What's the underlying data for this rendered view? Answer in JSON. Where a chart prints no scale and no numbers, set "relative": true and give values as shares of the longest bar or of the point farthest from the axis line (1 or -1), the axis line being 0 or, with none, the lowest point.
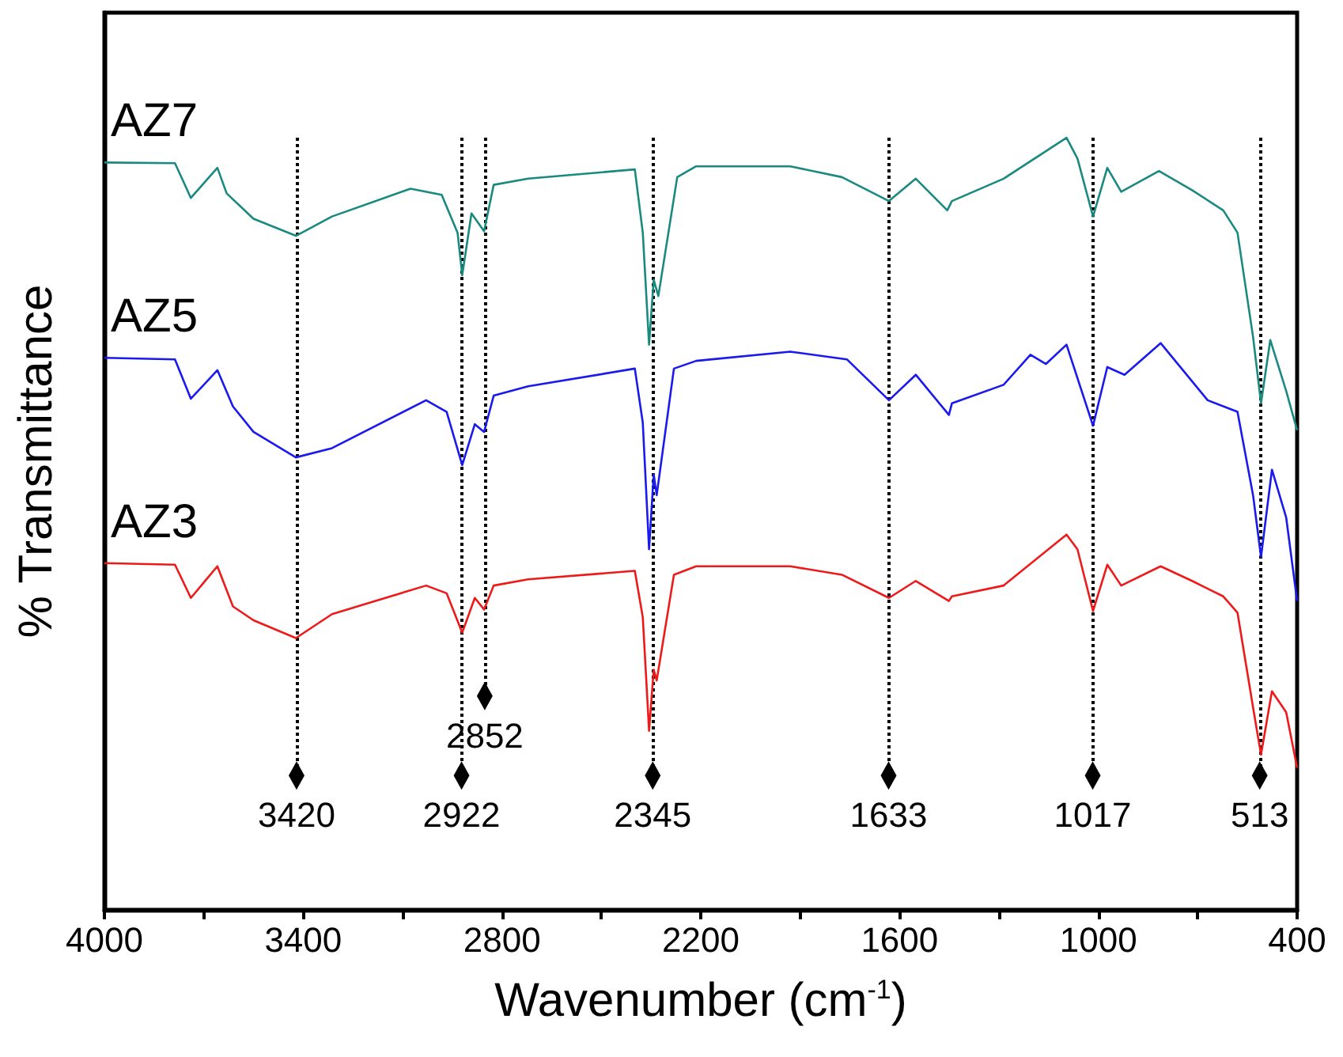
{
  "chart_data": {
    "type": "line",
    "relative": true,
    "xlabel": "Wavenumber (cm$^{-1}$)",
    "ylabel": "% Transmittance",
    "xlim": [
      4000,
      400
    ],
    "xticks": [
      4000,
      {
        "value": 3700,
        "label": null
      },
      3400,
      {
        "value": 3100,
        "label": null
      },
      2800,
      {
        "value": 2500,
        "label": null
      },
      2200,
      {
        "value": 1900,
        "label": null
      },
      1600,
      {
        "value": 1300,
        "label": null
      },
      1000,
      {
        "value": 700,
        "label": null
      },
      400
    ],
    "marker": "none",
    "grid": false,
    "series": [
      {
        "name": "AZ7",
        "color": "#1a8a80",
        "x": [
          4000,
          3787,
          3739,
          3659,
          3631,
          3550,
          3422,
          3313,
          3076,
          2982,
          2934,
          2920,
          2892,
          2854,
          2825,
          2721,
          2399,
          2375,
          2356,
          2342,
          2328,
          2271,
          2214,
          1930,
          1774,
          1632,
          1551,
          1456,
          1442,
          1286,
          1096,
          1063,
          1016,
          973,
          931,
          817,
          717,
          623,
          580,
          533,
          509,
          481,
          433,
          400
        ],
        "values": [
          0.968,
          0.967,
          0.922,
          0.961,
          0.928,
          0.895,
          0.873,
          0.898,
          0.934,
          0.926,
          0.877,
          0.822,
          0.902,
          0.879,
          0.939,
          0.947,
          0.959,
          0.877,
          0.732,
          0.816,
          0.795,
          0.949,
          0.963,
          0.963,
          0.949,
          0.918,
          0.947,
          0.906,
          0.918,
          0.947,
          1.0,
          0.973,
          0.898,
          0.961,
          0.93,
          0.957,
          0.932,
          0.906,
          0.877,
          0.742,
          0.656,
          0.738,
          0.672,
          0.621
        ]
      },
      {
        "name": "AZ5",
        "color": "#1a1aee",
        "x": [
          4000,
          3787,
          3739,
          3659,
          3612,
          3550,
          3422,
          3313,
          3029,
          2967,
          2920,
          2882,
          2854,
          2825,
          2721,
          2399,
          2375,
          2356,
          2342,
          2333,
          2281,
          2214,
          1930,
          1759,
          1632,
          1551,
          1451,
          1442,
          1286,
          1205,
          1158,
          1096,
          1016,
          973,
          921,
          812,
          670,
          580,
          533,
          509,
          476,
          433,
          400
        ],
        "values": [
          0.715,
          0.713,
          0.662,
          0.699,
          0.652,
          0.619,
          0.586,
          0.598,
          0.66,
          0.645,
          0.576,
          0.629,
          0.619,
          0.666,
          0.678,
          0.701,
          0.631,
          0.467,
          0.564,
          0.537,
          0.701,
          0.711,
          0.723,
          0.713,
          0.66,
          0.693,
          0.641,
          0.656,
          0.68,
          0.719,
          0.707,
          0.732,
          0.627,
          0.703,
          0.693,
          0.734,
          0.66,
          0.645,
          0.537,
          0.457,
          0.57,
          0.508,
          0.4
        ]
      },
      {
        "name": "AZ3",
        "color": "#ee1a1a",
        "x": [
          4000,
          3787,
          3739,
          3659,
          3612,
          3550,
          3422,
          3313,
          3029,
          2967,
          2920,
          2882,
          2854,
          2825,
          2721,
          2399,
          2375,
          2356,
          2342,
          2333,
          2281,
          2214,
          1930,
          1774,
          1632,
          1551,
          1451,
          1442,
          1286,
          1096,
          1063,
          1016,
          973,
          931,
          812,
          717,
          623,
          580,
          533,
          509,
          476,
          433,
          400
        ],
        "values": [
          0.449,
          0.447,
          0.404,
          0.445,
          0.393,
          0.375,
          0.352,
          0.383,
          0.42,
          0.41,
          0.359,
          0.404,
          0.389,
          0.42,
          0.428,
          0.439,
          0.379,
          0.232,
          0.311,
          0.297,
          0.434,
          0.445,
          0.445,
          0.434,
          0.404,
          0.426,
          0.4,
          0.406,
          0.42,
          0.486,
          0.467,
          0.387,
          0.447,
          0.42,
          0.445,
          0.426,
          0.406,
          0.385,
          0.262,
          0.201,
          0.283,
          0.256,
          0.184
        ]
      }
    ],
    "ref_lines": [
      {
        "axis": "x",
        "value": 3420,
        "label": "3420",
        "line_style": "dotted",
        "color": "#000000"
      },
      {
        "axis": "x",
        "value": 2922,
        "label": "2922",
        "line_style": "dotted",
        "color": "#000000"
      },
      {
        "axis": "x",
        "value": 2852,
        "label": "2852",
        "line_style": "dotted",
        "color": "#000000"
      },
      {
        "axis": "x",
        "value": 2345,
        "label": "2345",
        "line_style": "dotted",
        "color": "#000000"
      },
      {
        "axis": "x",
        "value": 1633,
        "label": "1633",
        "line_style": "dotted",
        "color": "#000000"
      },
      {
        "axis": "x",
        "value": 1017,
        "label": "1017",
        "line_style": "dotted",
        "color": "#000000"
      },
      {
        "axis": "x",
        "value": 513,
        "label": "513",
        "line_style": "dotted",
        "color": "#000000"
      }
    ]
  }
}
